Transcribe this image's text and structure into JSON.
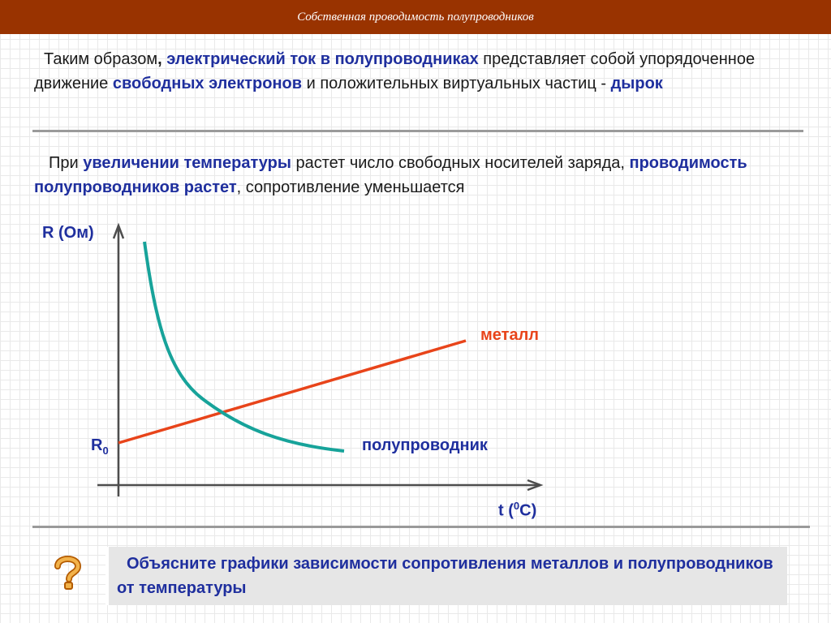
{
  "header": {
    "title": "Собственная проводимость полупроводников"
  },
  "para1": {
    "t1": "Таким образом",
    "t2": ", ",
    "t3": "электрический ток в полупроводниках",
    "t4": " представляет собой упорядоченное движение ",
    "t5": "свободных электронов",
    "t6": " и положительных виртуальных частиц - ",
    "t7": "дырок"
  },
  "para2": {
    "t1": "При ",
    "t2": "увеличении температуры",
    "t3": " растет число свободных носителей заряда, ",
    "t4": "проводимость полупроводников растет",
    "t5": ", сопротивление уменьшается"
  },
  "graph": {
    "y_label": "R (Ом)",
    "r0_main": "R",
    "r0_sub": "0",
    "x_label_pre": "t (",
    "x_label_sup": "0",
    "x_label_post": "C)",
    "metal_label": "металл",
    "semi_label": "полупроводник",
    "colors": {
      "axis": "#4d4d4d",
      "metal": "#e8441a",
      "semi": "#17a39a",
      "label": "#1f2f9e"
    }
  },
  "question": {
    "icon": "question-icon",
    "text": "Объясните графики зависимости сопротивления металлов и полупроводников от температуры"
  }
}
